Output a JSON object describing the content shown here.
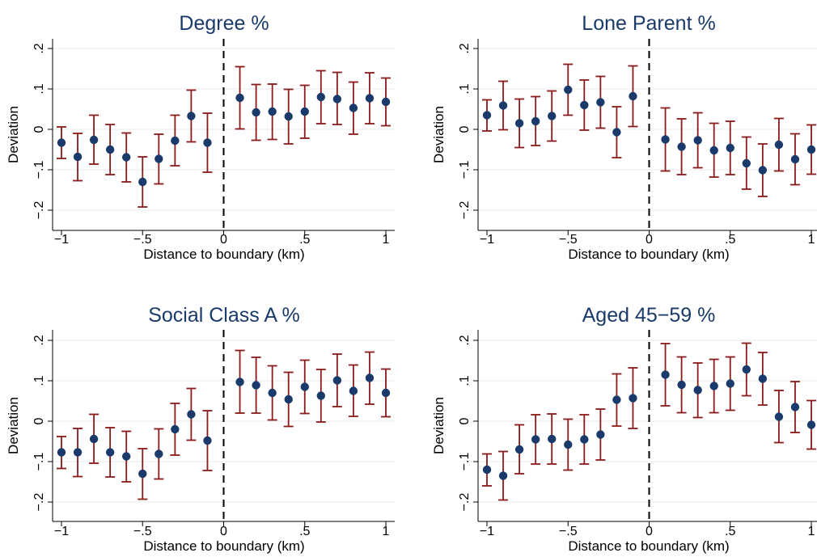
{
  "colors": {
    "point": "#1a3a6b",
    "error_bar": "#8b1a1a",
    "grid": "#e8e8e8",
    "title": "#1a3a6b"
  },
  "chart_data": [
    {
      "type": "scatter",
      "title": "Degree %",
      "xlabel": "Distance to boundary (km)",
      "ylabel": "Deviation",
      "xlim": [
        -1,
        1
      ],
      "ylim": [
        -0.2,
        0.2
      ],
      "xticks": [
        -1,
        -0.5,
        0,
        0.5,
        1
      ],
      "xtick_labels": [
        "−1",
        "−.5",
        "0",
        ".5",
        "1"
      ],
      "yticks": [
        -0.2,
        -0.1,
        0,
        0.1,
        0.2
      ],
      "ytick_labels": [
        "−.2",
        "−.1",
        "0",
        ".1",
        ".2"
      ],
      "grid": true,
      "reference_line": 0,
      "x": [
        -1,
        -0.9,
        -0.8,
        -0.7,
        -0.6,
        -0.5,
        -0.4,
        -0.3,
        -0.2,
        -0.1,
        0.1,
        0.2,
        0.3,
        0.4,
        0.5,
        0.6,
        0.7,
        0.8,
        0.9,
        1
      ],
      "y": [
        -0.033,
        -0.068,
        -0.026,
        -0.05,
        -0.069,
        -0.13,
        -0.073,
        -0.028,
        0.033,
        -0.033,
        0.078,
        0.042,
        0.044,
        0.032,
        0.044,
        0.08,
        0.075,
        0.053,
        0.077,
        0.068
      ],
      "ci_low": [
        -0.072,
        -0.127,
        -0.086,
        -0.112,
        -0.13,
        -0.192,
        -0.135,
        -0.09,
        -0.031,
        -0.106,
        0.001,
        -0.027,
        -0.025,
        -0.036,
        -0.022,
        0.014,
        0.012,
        -0.012,
        0.014,
        0.009
      ],
      "ci_high": [
        0.006,
        -0.01,
        0.035,
        0.012,
        -0.009,
        -0.068,
        -0.012,
        0.035,
        0.097,
        0.04,
        0.155,
        0.111,
        0.112,
        0.099,
        0.109,
        0.145,
        0.141,
        0.117,
        0.14,
        0.127
      ]
    },
    {
      "type": "scatter",
      "title": "Lone Parent %",
      "xlabel": "Distance to boundary (km)",
      "ylabel": "Deviation",
      "xlim": [
        -1,
        1
      ],
      "ylim": [
        -0.2,
        0.2
      ],
      "xticks": [
        -1,
        -0.5,
        0,
        0.5,
        1
      ],
      "xtick_labels": [
        "−1",
        "−.5",
        "0",
        ".5",
        "1"
      ],
      "yticks": [
        -0.2,
        -0.1,
        0,
        0.1,
        0.2
      ],
      "ytick_labels": [
        "−.2",
        "−.1",
        "0",
        ".1",
        ".2"
      ],
      "grid": true,
      "reference_line": 0,
      "x": [
        -1,
        -0.9,
        -0.8,
        -0.7,
        -0.6,
        -0.5,
        -0.4,
        -0.3,
        -0.2,
        -0.1,
        0.1,
        0.2,
        0.3,
        0.4,
        0.5,
        0.6,
        0.7,
        0.8,
        0.9,
        1
      ],
      "y": [
        0.035,
        0.059,
        0.015,
        0.02,
        0.033,
        0.098,
        0.06,
        0.067,
        -0.007,
        0.082,
        -0.025,
        -0.043,
        -0.027,
        -0.052,
        -0.046,
        -0.084,
        -0.101,
        -0.038,
        -0.074,
        -0.05
      ],
      "ci_low": [
        -0.004,
        -0.001,
        -0.045,
        -0.04,
        -0.029,
        0.035,
        -0.002,
        0.003,
        -0.07,
        0.007,
        -0.103,
        -0.112,
        -0.095,
        -0.118,
        -0.112,
        -0.148,
        -0.166,
        -0.103,
        -0.137,
        -0.111
      ],
      "ci_high": [
        0.073,
        0.119,
        0.075,
        0.081,
        0.095,
        0.161,
        0.122,
        0.131,
        0.056,
        0.157,
        0.053,
        0.026,
        0.041,
        0.015,
        0.02,
        -0.019,
        -0.036,
        0.027,
        -0.011,
        0.011
      ]
    },
    {
      "type": "scatter",
      "title": "Social Class A %",
      "xlabel": "Distance to boundary (km)",
      "ylabel": "Deviation",
      "xlim": [
        -1,
        1
      ],
      "ylim": [
        -0.2,
        0.2
      ],
      "xticks": [
        -1,
        -0.5,
        0,
        0.5,
        1
      ],
      "xtick_labels": [
        "−1",
        "−.5",
        "0",
        ".5",
        "1"
      ],
      "yticks": [
        -0.2,
        -0.1,
        0,
        0.1,
        0.2
      ],
      "ytick_labels": [
        "−.2",
        "−.1",
        "0",
        ".1",
        ".2"
      ],
      "grid": true,
      "reference_line": 0,
      "x": [
        -1,
        -0.9,
        -0.8,
        -0.7,
        -0.6,
        -0.5,
        -0.4,
        -0.3,
        -0.2,
        -0.1,
        0.1,
        0.2,
        0.3,
        0.4,
        0.5,
        0.6,
        0.7,
        0.8,
        0.9,
        1
      ],
      "y": [
        -0.077,
        -0.077,
        -0.044,
        -0.077,
        -0.087,
        -0.13,
        -0.081,
        -0.02,
        0.017,
        -0.048,
        0.097,
        0.089,
        0.07,
        0.054,
        0.085,
        0.063,
        0.101,
        0.075,
        0.107,
        0.07
      ],
      "ci_low": [
        -0.117,
        -0.137,
        -0.104,
        -0.138,
        -0.15,
        -0.193,
        -0.143,
        -0.084,
        -0.047,
        -0.122,
        0.02,
        0.02,
        0.003,
        -0.013,
        0.019,
        -0.002,
        0.036,
        0.012,
        0.042,
        0.011
      ],
      "ci_high": [
        -0.038,
        -0.018,
        0.017,
        -0.016,
        -0.025,
        -0.068,
        -0.019,
        0.044,
        0.081,
        0.026,
        0.175,
        0.158,
        0.137,
        0.121,
        0.151,
        0.128,
        0.166,
        0.139,
        0.171,
        0.129
      ]
    },
    {
      "type": "scatter",
      "title": "Aged 45−59 %",
      "xlabel": "Distance to boundary (km)",
      "ylabel": "Deviation",
      "xlim": [
        -1,
        1
      ],
      "ylim": [
        -0.2,
        0.2
      ],
      "xticks": [
        -1,
        -0.5,
        0,
        0.5,
        1
      ],
      "xtick_labels": [
        "−1",
        "−.5",
        "0",
        ".5",
        "1"
      ],
      "yticks": [
        -0.2,
        -0.1,
        0,
        0.1,
        0.2
      ],
      "ytick_labels": [
        "−.2",
        "−.1",
        "0",
        ".1",
        ".2"
      ],
      "grid": true,
      "reference_line": 0,
      "x": [
        -1,
        -0.9,
        -0.8,
        -0.7,
        -0.6,
        -0.5,
        -0.4,
        -0.3,
        -0.2,
        -0.1,
        0.1,
        0.2,
        0.3,
        0.4,
        0.5,
        0.6,
        0.7,
        0.8,
        0.9,
        1
      ],
      "y": [
        -0.12,
        -0.135,
        -0.07,
        -0.045,
        -0.044,
        -0.058,
        -0.045,
        -0.033,
        0.053,
        0.057,
        0.115,
        0.09,
        0.077,
        0.087,
        0.093,
        0.128,
        0.105,
        0.011,
        0.035,
        -0.009
      ],
      "ci_low": [
        -0.16,
        -0.195,
        -0.13,
        -0.106,
        -0.106,
        -0.121,
        -0.106,
        -0.096,
        -0.012,
        -0.018,
        0.038,
        0.021,
        0.009,
        0.021,
        0.027,
        0.063,
        0.04,
        -0.053,
        -0.028,
        -0.069
      ],
      "ci_high": [
        -0.081,
        -0.075,
        -0.009,
        0.016,
        0.018,
        0.005,
        0.016,
        0.03,
        0.117,
        0.132,
        0.192,
        0.159,
        0.144,
        0.153,
        0.159,
        0.193,
        0.17,
        0.076,
        0.098,
        0.051
      ]
    }
  ]
}
